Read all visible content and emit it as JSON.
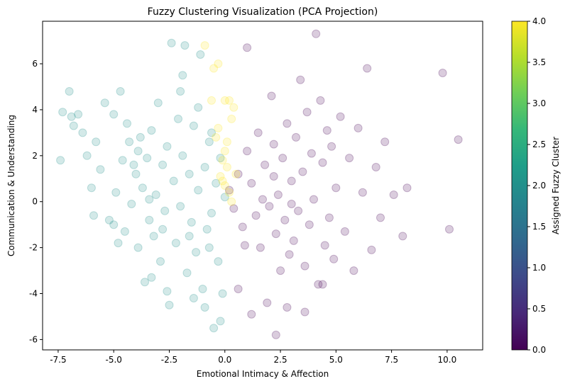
{
  "chart_data": {
    "type": "scatter",
    "title": "Fuzzy Clustering Visualization (PCA Projection)",
    "xlabel": "Emotional Intimacy & Affection",
    "ylabel": "Communication & Understanding",
    "xlim": [
      -8.2,
      11.6
    ],
    "ylim": [
      -6.45,
      7.85
    ],
    "xticks": [
      -7.5,
      -5.0,
      -2.5,
      0.0,
      2.5,
      5.0,
      7.5,
      10.0
    ],
    "xtick_labels": [
      "-7.5",
      "-5.0",
      "-2.5",
      "0.0",
      "2.5",
      "5.0",
      "7.5",
      "10.0"
    ],
    "yticks": [
      -6,
      -4,
      -2,
      0,
      2,
      4,
      6
    ],
    "ytick_labels": [
      "-6",
      "-4",
      "-2",
      "0",
      "2",
      "4",
      "6"
    ],
    "grid": false,
    "marker_opacity": 0.2,
    "colorbar": {
      "label": "Assigned Fuzzy Cluster",
      "range": [
        0.0,
        4.0
      ],
      "ticks": [
        0.0,
        0.5,
        1.0,
        1.5,
        2.0,
        2.5,
        3.0,
        3.5,
        4.0
      ],
      "tick_labels": [
        "0.0",
        "0.5",
        "1.0",
        "1.5",
        "2.0",
        "2.5",
        "3.0",
        "3.5",
        "4.0"
      ],
      "colormap": [
        "#440154",
        "#482878",
        "#3e4989",
        "#31688e",
        "#26828e",
        "#1f9e89",
        "#35b779",
        "#6ece58",
        "#b5de2b",
        "#fde725"
      ]
    },
    "series": [
      {
        "cluster": 0,
        "color": "#440154",
        "points": [
          [
            0.2,
            0.5
          ],
          [
            0.4,
            -0.3
          ],
          [
            0.6,
            1.2
          ],
          [
            0.8,
            -1.1
          ],
          [
            1.0,
            2.2
          ],
          [
            1.2,
            0.8
          ],
          [
            1.4,
            -0.6
          ],
          [
            1.5,
            3.0
          ],
          [
            1.6,
            -2.0
          ],
          [
            1.8,
            1.6
          ],
          [
            2.0,
            -0.2
          ],
          [
            2.1,
            4.6
          ],
          [
            2.2,
            2.5
          ],
          [
            2.3,
            -1.4
          ],
          [
            2.4,
            0.3
          ],
          [
            2.5,
            -3.0
          ],
          [
            2.6,
            1.9
          ],
          [
            2.7,
            -0.8
          ],
          [
            2.8,
            3.4
          ],
          [
            2.9,
            -2.3
          ],
          [
            3.0,
            0.9
          ],
          [
            3.1,
            -1.7
          ],
          [
            3.2,
            2.8
          ],
          [
            3.3,
            -0.4
          ],
          [
            3.4,
            5.3
          ],
          [
            3.5,
            1.3
          ],
          [
            3.6,
            -2.8
          ],
          [
            3.7,
            3.9
          ],
          [
            3.8,
            -1.0
          ],
          [
            3.9,
            2.1
          ],
          [
            4.0,
            0.1
          ],
          [
            4.1,
            7.3
          ],
          [
            4.2,
            -3.6
          ],
          [
            4.3,
            4.4
          ],
          [
            4.4,
            1.7
          ],
          [
            4.5,
            -1.9
          ],
          [
            4.6,
            3.1
          ],
          [
            4.7,
            -0.7
          ],
          [
            4.8,
            2.4
          ],
          [
            4.9,
            -2.5
          ],
          [
            5.0,
            0.6
          ],
          [
            5.2,
            3.7
          ],
          [
            5.4,
            -1.3
          ],
          [
            5.6,
            1.9
          ],
          [
            5.8,
            -3.0
          ],
          [
            6.0,
            3.2
          ],
          [
            6.2,
            0.4
          ],
          [
            6.4,
            5.8
          ],
          [
            6.6,
            -2.1
          ],
          [
            6.8,
            1.5
          ],
          [
            7.0,
            -0.7
          ],
          [
            7.2,
            2.6
          ],
          [
            7.6,
            0.3
          ],
          [
            8.0,
            -1.5
          ],
          [
            8.2,
            0.6
          ],
          [
            9.8,
            5.6
          ],
          [
            10.1,
            -1.2
          ],
          [
            10.5,
            2.7
          ],
          [
            1.0,
            6.7
          ],
          [
            0.6,
            -3.8
          ],
          [
            1.2,
            -4.9
          ],
          [
            1.9,
            -4.4
          ],
          [
            2.3,
            -5.8
          ],
          [
            2.8,
            -4.6
          ],
          [
            3.6,
            -4.8
          ],
          [
            4.4,
            -3.6
          ],
          [
            0.9,
            -1.9
          ],
          [
            1.7,
            0.1
          ],
          [
            2.2,
            1.1
          ],
          [
            3.0,
            -0.1
          ]
        ]
      },
      {
        "cluster": 2,
        "color": "#21918c",
        "points": [
          [
            -7.4,
            1.8
          ],
          [
            -7.3,
            3.9
          ],
          [
            -7.0,
            4.8
          ],
          [
            -6.8,
            3.3
          ],
          [
            -6.6,
            3.8
          ],
          [
            -6.4,
            3.0
          ],
          [
            -6.2,
            2.0
          ],
          [
            -6.0,
            0.6
          ],
          [
            -5.9,
            -0.6
          ],
          [
            -5.6,
            1.4
          ],
          [
            -5.4,
            4.3
          ],
          [
            -5.2,
            -0.8
          ],
          [
            -5.0,
            3.8
          ],
          [
            -4.9,
            0.4
          ],
          [
            -4.7,
            4.8
          ],
          [
            -4.6,
            1.8
          ],
          [
            -4.5,
            -1.3
          ],
          [
            -4.3,
            2.6
          ],
          [
            -4.2,
            -0.1
          ],
          [
            -4.0,
            1.2
          ],
          [
            -3.9,
            -2.0
          ],
          [
            -3.8,
            2.8
          ],
          [
            -3.7,
            0.6
          ],
          [
            -3.6,
            -3.5
          ],
          [
            -3.5,
            1.9
          ],
          [
            -3.4,
            -0.8
          ],
          [
            -3.3,
            3.1
          ],
          [
            -3.2,
            -1.5
          ],
          [
            -3.1,
            0.3
          ],
          [
            -3.0,
            4.3
          ],
          [
            -2.9,
            -2.6
          ],
          [
            -2.8,
            1.6
          ],
          [
            -2.7,
            -0.4
          ],
          [
            -2.6,
            2.4
          ],
          [
            -2.5,
            -4.5
          ],
          [
            -2.4,
            6.9
          ],
          [
            -2.3,
            0.9
          ],
          [
            -2.2,
            -1.8
          ],
          [
            -2.1,
            3.6
          ],
          [
            -2.0,
            -0.2
          ],
          [
            -1.9,
            2.0
          ],
          [
            -1.8,
            6.8
          ],
          [
            -1.7,
            -3.1
          ],
          [
            -1.6,
            1.2
          ],
          [
            -1.5,
            -0.9
          ],
          [
            -1.4,
            3.3
          ],
          [
            -1.3,
            -2.2
          ],
          [
            -1.2,
            0.5
          ],
          [
            -1.1,
            6.4
          ],
          [
            -1.0,
            -3.8
          ],
          [
            -0.9,
            1.5
          ],
          [
            -0.8,
            -1.2
          ],
          [
            -0.7,
            2.6
          ],
          [
            -0.6,
            -0.5
          ],
          [
            -0.5,
            -5.5
          ],
          [
            -0.4,
            0.8
          ],
          [
            -0.3,
            -2.6
          ],
          [
            -0.2,
            1.9
          ],
          [
            -0.1,
            -4.0
          ],
          [
            0.0,
            0.2
          ],
          [
            -6.9,
            3.7
          ],
          [
            -5.8,
            2.6
          ],
          [
            -5.0,
            -1.0
          ],
          [
            -4.4,
            3.4
          ],
          [
            -3.3,
            -3.3
          ],
          [
            -2.6,
            -3.9
          ],
          [
            -1.9,
            5.5
          ],
          [
            -1.4,
            -4.2
          ],
          [
            -0.9,
            -4.6
          ],
          [
            -0.2,
            -5.2
          ],
          [
            -4.8,
            -1.8
          ],
          [
            -3.9,
            2.2
          ],
          [
            -2.0,
            4.8
          ],
          [
            -1.2,
            4.1
          ],
          [
            -0.6,
            3.0
          ],
          [
            -2.8,
            -1.2
          ],
          [
            -1.6,
            -1.5
          ],
          [
            -0.7,
            -2.0
          ],
          [
            -3.4,
            0.1
          ],
          [
            -4.1,
            1.6
          ]
        ]
      },
      {
        "cluster": 4,
        "color": "#fde725",
        "points": [
          [
            -0.9,
            6.8
          ],
          [
            -0.5,
            5.8
          ],
          [
            -0.3,
            6.0
          ],
          [
            -0.6,
            4.4
          ],
          [
            0.0,
            4.4
          ],
          [
            0.2,
            4.4
          ],
          [
            0.4,
            4.1
          ],
          [
            0.3,
            3.6
          ],
          [
            -0.4,
            2.8
          ],
          [
            0.0,
            2.2
          ],
          [
            -0.1,
            1.8
          ],
          [
            0.1,
            1.5
          ],
          [
            -0.2,
            1.1
          ],
          [
            0.0,
            0.7
          ],
          [
            0.2,
            0.4
          ],
          [
            0.3,
            0.0
          ],
          [
            0.1,
            2.6
          ],
          [
            -0.3,
            3.2
          ],
          [
            0.5,
            1.2
          ],
          [
            -0.1,
            0.9
          ]
        ]
      }
    ]
  }
}
